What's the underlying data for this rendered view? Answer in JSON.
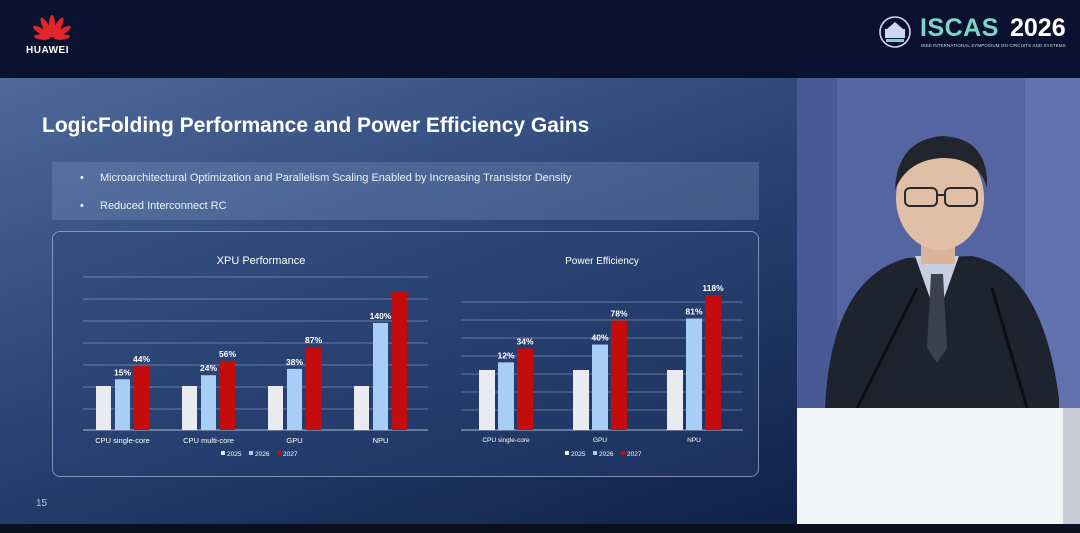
{
  "header": {
    "brand": "HUAWEI",
    "conference_name": "ISCAS",
    "conference_year": "2026",
    "conference_subtitle": "IEEE INTERNATIONAL SYMPOSIUM ON CIRCUITS AND SYSTEMS"
  },
  "slide": {
    "title": "LogicFolding Performance and Power Efficiency Gains",
    "bullets": [
      "Microarchitectural Optimization and Parallelism Scaling Enabled by Increasing Transistor Density",
      "Reduced Interconnect RC"
    ],
    "page_number": "15"
  },
  "colors": {
    "y2025": "#e9ebf0",
    "y2026": "#a8cdf6",
    "y2027": "#c40c0c"
  },
  "chart_data": [
    {
      "type": "bar",
      "title": "XPU Performance",
      "categories": [
        "CPU single-core",
        "CPU multi-core",
        "GPU",
        "NPU"
      ],
      "series": [
        {
          "name": "2025",
          "values": [
            0,
            0,
            0,
            0
          ]
        },
        {
          "name": "2026",
          "values": [
            15,
            24,
            38,
            140
          ]
        },
        {
          "name": "2027",
          "values": [
            44,
            56,
            87,
            null
          ]
        }
      ],
      "labels_2026": [
        "15%",
        "24%",
        "38%",
        "140%"
      ],
      "labels_2027": [
        "44%",
        "56%",
        "87%",
        ""
      ],
      "legend": [
        "2025",
        "2026",
        "2027"
      ],
      "legend_position": "bottom-center"
    },
    {
      "type": "bar",
      "title": "Power Efficiency",
      "categories": [
        "CPU single-core",
        "GPU",
        "NPU"
      ],
      "series": [
        {
          "name": "2025",
          "values": [
            0,
            0,
            0
          ]
        },
        {
          "name": "2026",
          "values": [
            12,
            40,
            81
          ]
        },
        {
          "name": "2027",
          "values": [
            34,
            78,
            118
          ]
        }
      ],
      "labels_2026": [
        "12%",
        "40%",
        "81%"
      ],
      "labels_2027": [
        "34%",
        "78%",
        "118%"
      ],
      "legend": [
        "2025",
        "2026",
        "2027"
      ],
      "legend_position": "bottom-center"
    }
  ]
}
